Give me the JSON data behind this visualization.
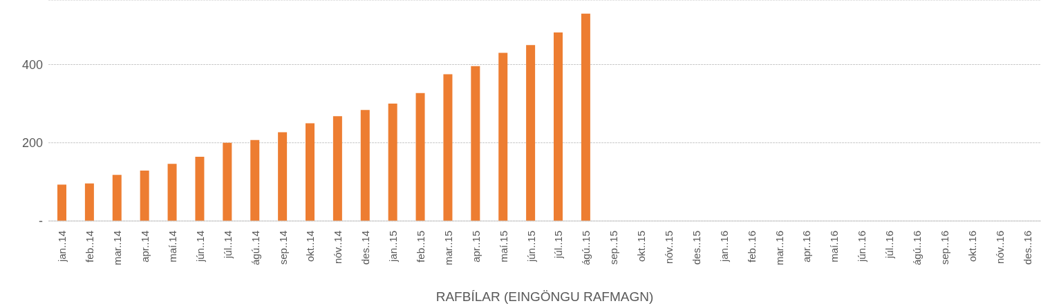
{
  "chart_data": {
    "type": "bar",
    "xlabel": "RAFBÍLAR  (EINGÖNGU  RAFMAGN)",
    "categories": [
      "jan..14",
      "feb..14",
      "mar..14",
      "apr..14",
      "maí.14",
      "jún..14",
      "júl..14",
      "ágú..14",
      "sep..14",
      "okt..14",
      "nóv..14",
      "des..14",
      "jan..15",
      "feb..15",
      "mar..15",
      "apr..15",
      "maí.15",
      "jún..15",
      "júl..15",
      "ágú..15",
      "sep..15",
      "okt..15",
      "nóv..15",
      "des..15",
      "jan..16",
      "feb..16",
      "mar..16",
      "apr..16",
      "maí.16",
      "jún..16",
      "júl..16",
      "ágú..16",
      "sep..16",
      "okt..16",
      "nóv..16",
      "des..16"
    ],
    "values": [
      93,
      96,
      118,
      129,
      146,
      164,
      200,
      207,
      227,
      250,
      268,
      284,
      300,
      327,
      375,
      396,
      430,
      450,
      482,
      530,
      null,
      null,
      null,
      null,
      null,
      null,
      null,
      null,
      null,
      null,
      null,
      null,
      null,
      null,
      null,
      null
    ],
    "color": "#ed7d31",
    "ylim": [
      0,
      565
    ],
    "yticks": [
      {
        "value": 0,
        "label": "-"
      },
      200,
      400
    ],
    "grid": "y"
  }
}
